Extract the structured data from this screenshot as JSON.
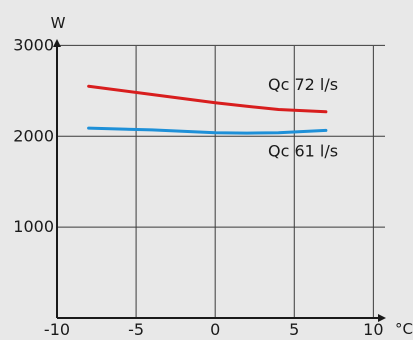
{
  "chart_data": {
    "type": "line",
    "title": "",
    "xlabel": "°C",
    "ylabel": "W",
    "xlim": [
      -10,
      12
    ],
    "ylim": [
      0,
      3500
    ],
    "x_ticks": [
      -10,
      -5,
      0,
      5,
      10
    ],
    "x_tick_labels": [
      "-10",
      "-5",
      "0",
      "5",
      "10"
    ],
    "y_ticks": [
      1000,
      2000,
      3000
    ],
    "y_tick_labels": [
      "1000",
      "2000",
      "3000"
    ],
    "grid": true,
    "colors": {
      "background": "#e8e8e8",
      "grid": "#3a3a3a",
      "axis": "#1a1a1a"
    },
    "series": [
      {
        "name": "Qc 72 l/s",
        "color": "#d81e1e",
        "x": [
          -8,
          -4,
          0,
          2,
          4,
          7
        ],
        "y": [
          2550,
          2460,
          2370,
          2330,
          2295,
          2270
        ]
      },
      {
        "name": "Qc 61 l/s",
        "color": "#1e90d8",
        "x": [
          -8,
          -4,
          0,
          2,
          4,
          7
        ],
        "y": [
          2090,
          2070,
          2040,
          2035,
          2040,
          2065
        ]
      }
    ]
  }
}
